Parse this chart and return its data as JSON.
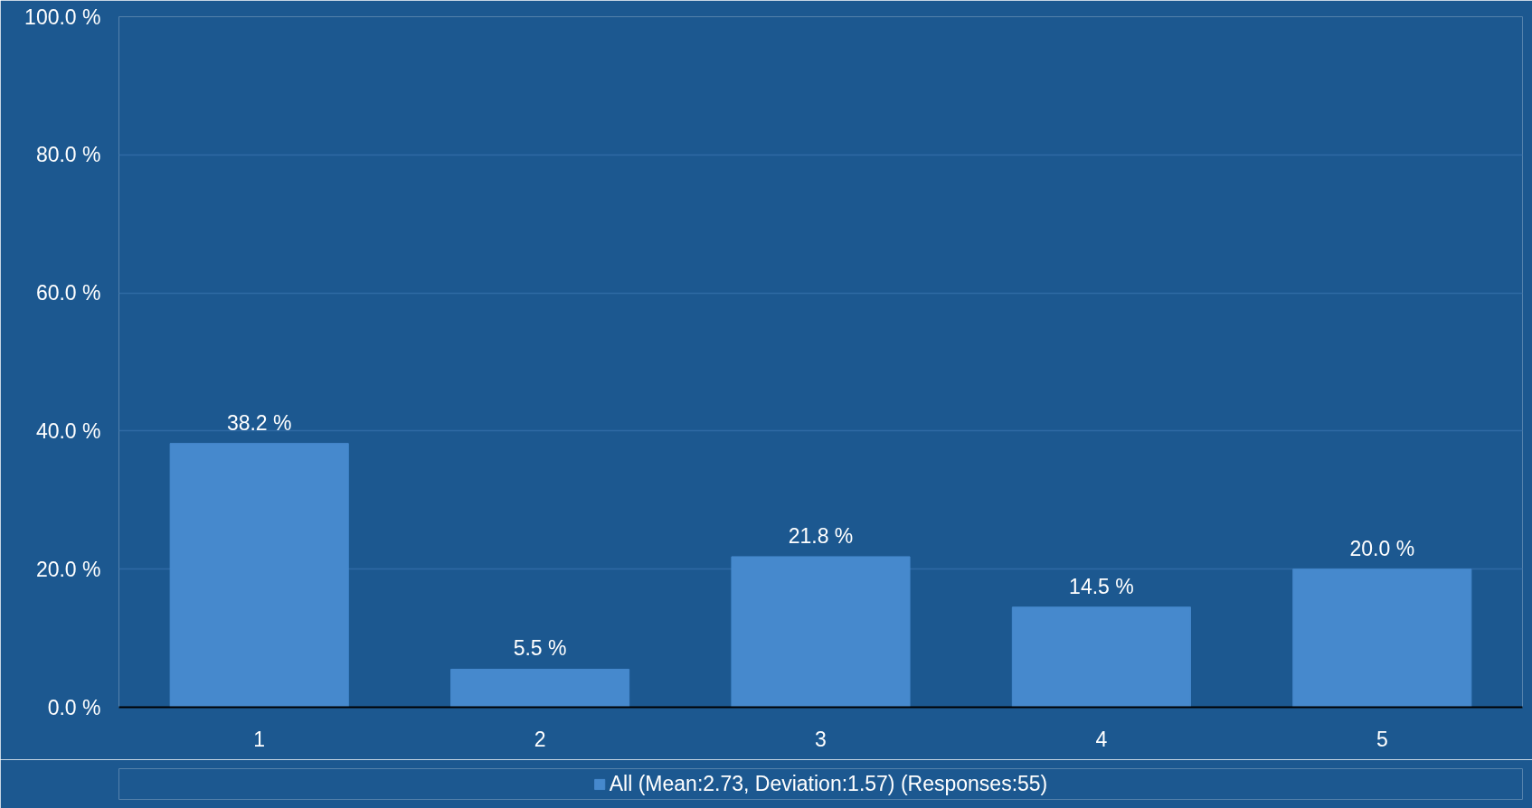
{
  "chart_data": {
    "type": "bar",
    "categories": [
      "1",
      "2",
      "3",
      "4",
      "5"
    ],
    "series": [
      {
        "name": "All (Mean:2.73, Deviation:1.57) (Responses:55)",
        "color": "#4689cd",
        "values": [
          38.2,
          5.5,
          21.8,
          14.5,
          20.0
        ],
        "value_labels": [
          "38.2 %",
          "5.5 %",
          "21.8 %",
          "14.5 %",
          "20.0 %"
        ]
      }
    ],
    "ylim": [
      0,
      100
    ],
    "yticks": [
      {
        "value": 0,
        "label": "0.0 %"
      },
      {
        "value": 20,
        "label": "20.0 %"
      },
      {
        "value": 40,
        "label": "40.0 %"
      },
      {
        "value": 60,
        "label": "60.0 %"
      },
      {
        "value": 80,
        "label": "80.0 %"
      },
      {
        "value": 100,
        "label": "100.0 %"
      }
    ],
    "grid": "y",
    "legend": "bottom"
  }
}
